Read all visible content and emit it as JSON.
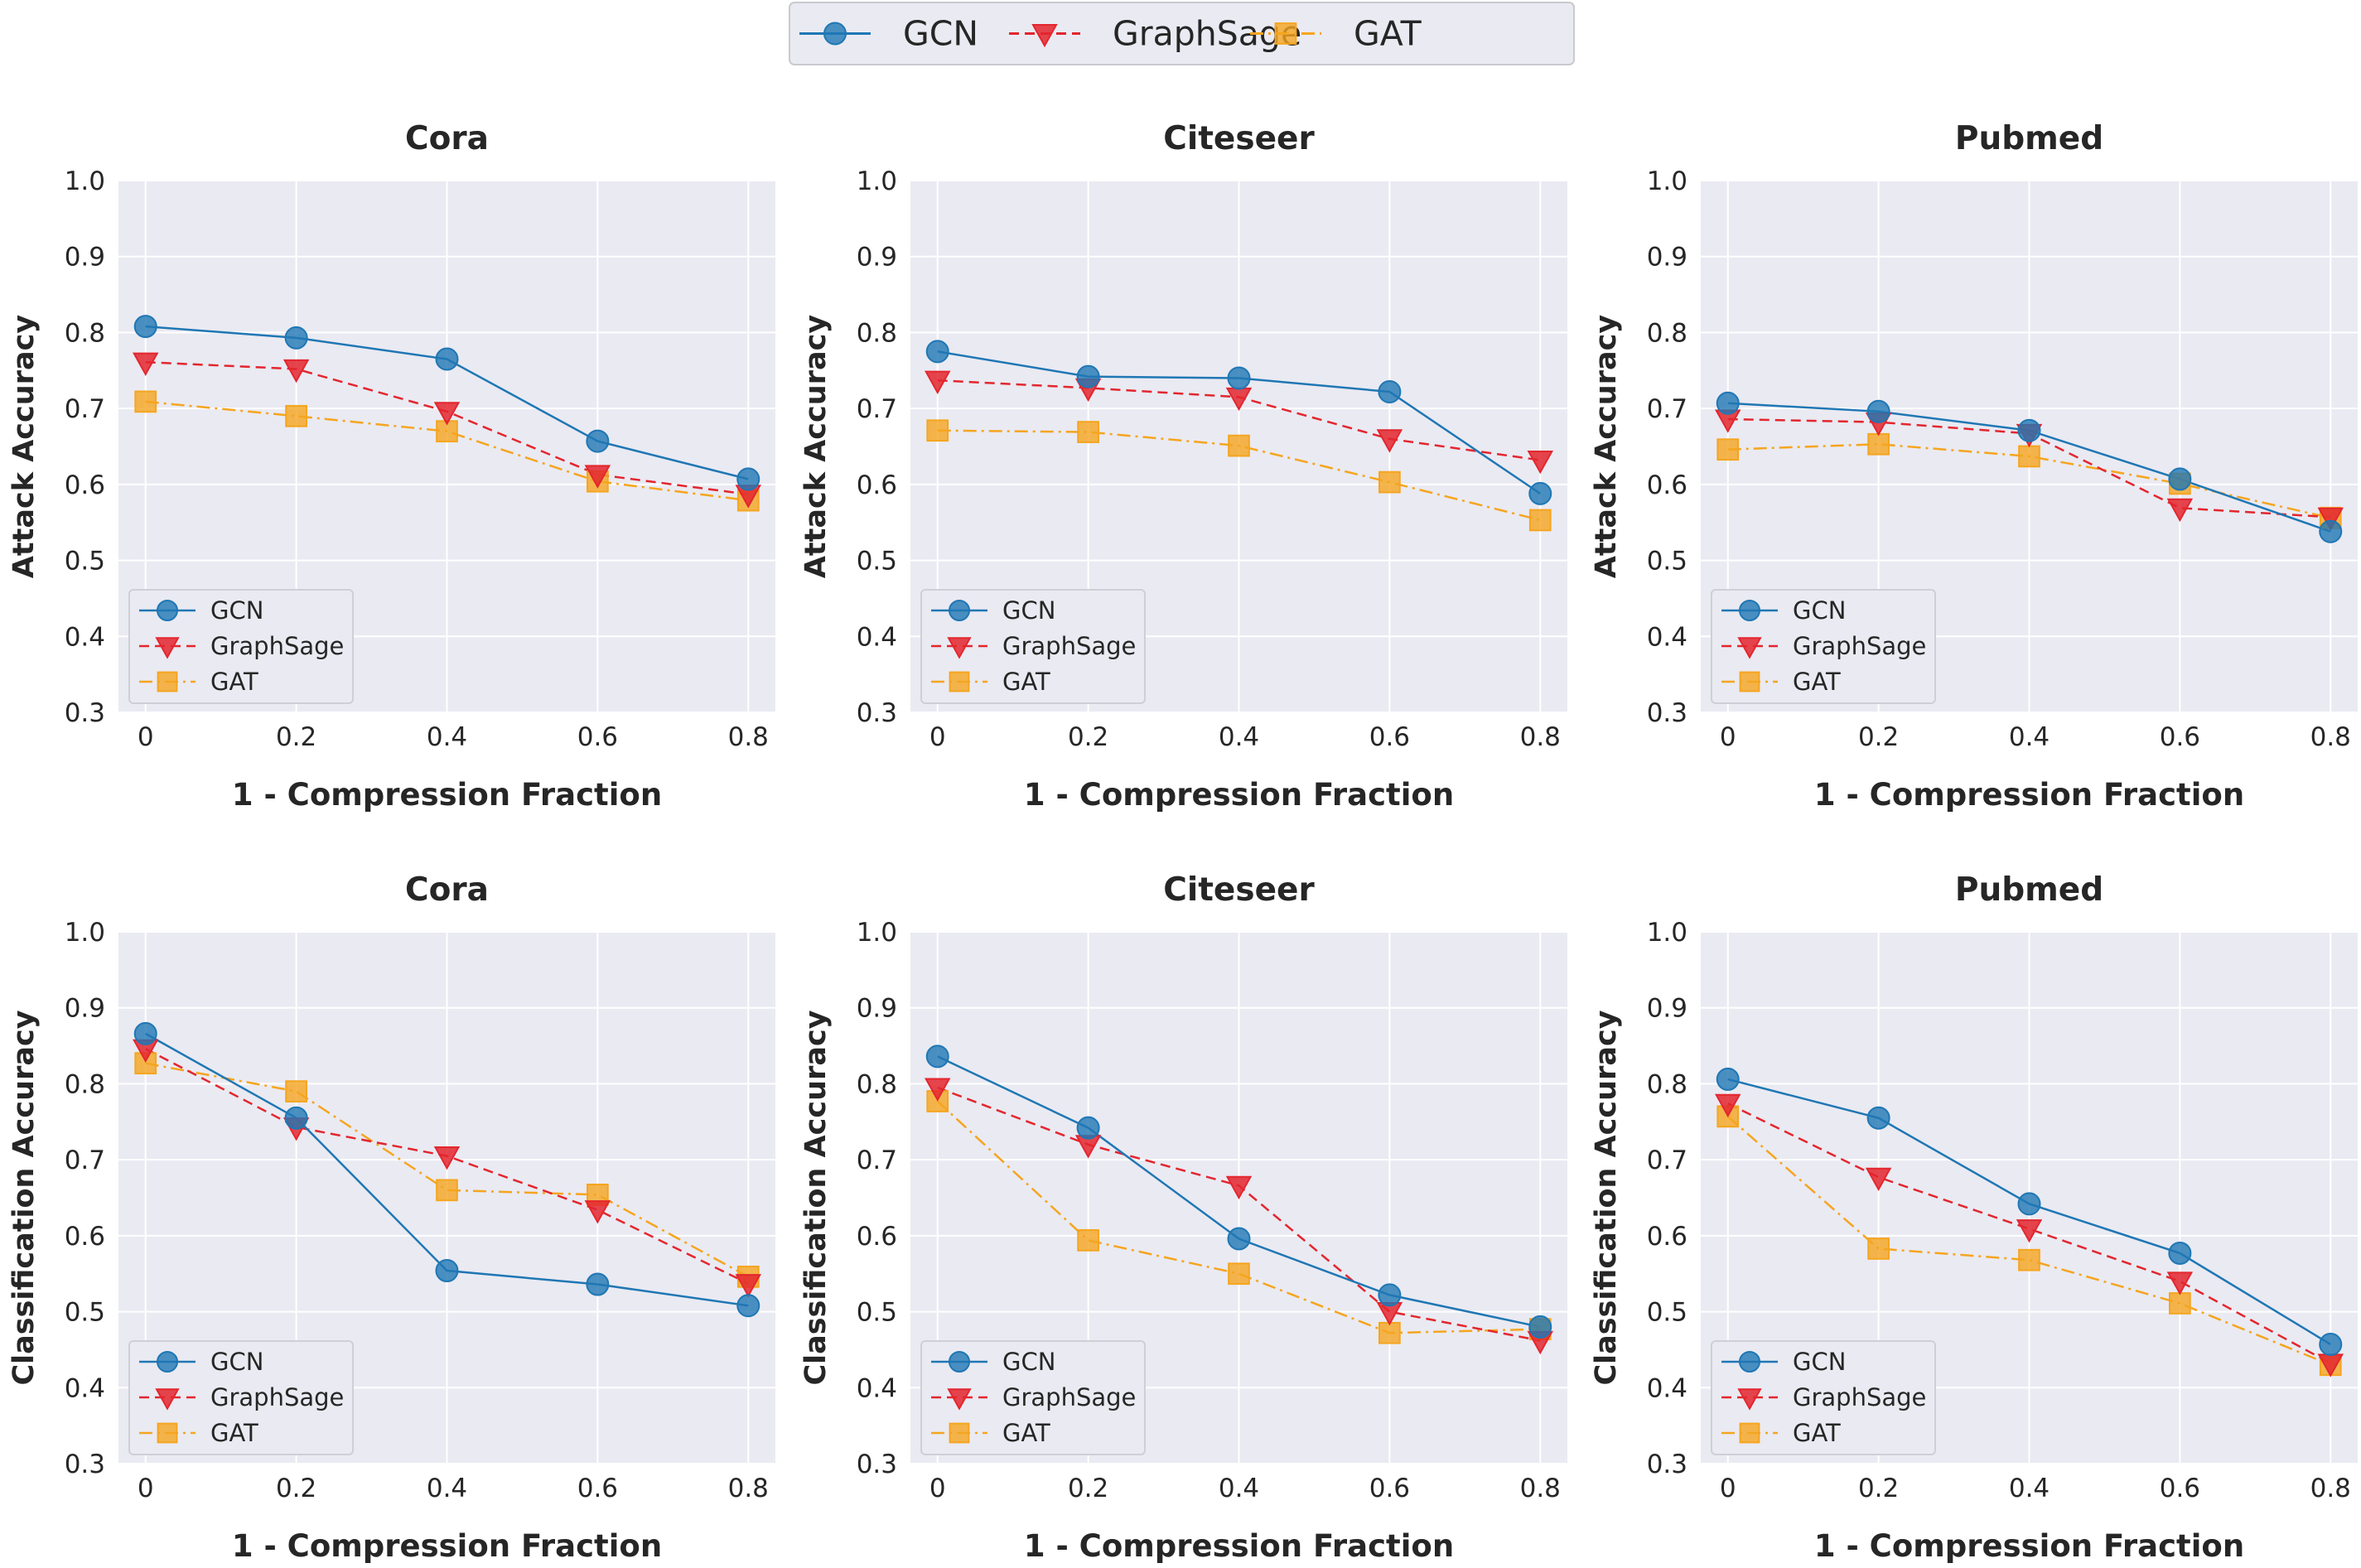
{
  "legend_top": {
    "items": [
      {
        "name": "GCN"
      },
      {
        "name": "GraphSage"
      },
      {
        "name": "GAT"
      }
    ]
  },
  "series_styles": [
    {
      "name": "GCN",
      "color": "#1f77b4",
      "marker": "circle",
      "dash": "solid"
    },
    {
      "name": "GraphSage",
      "color": "#e3262e",
      "marker": "triangle-down",
      "dash": "dashed"
    },
    {
      "name": "GAT",
      "color": "#f5a51f",
      "marker": "square",
      "dash": "dashdot"
    }
  ],
  "chart_data": [
    {
      "type": "line",
      "title": "Cora",
      "xlabel": "1 - Compression Fraction",
      "ylabel": "Attack Accuracy",
      "x": [
        0,
        0.2,
        0.4,
        0.6,
        0.8
      ],
      "x_tick_labels": [
        "0",
        "0.2",
        "0.4",
        "0.6",
        "0.8"
      ],
      "ylim": [
        0.3,
        1.0
      ],
      "y_ticks": [
        "0.3",
        "0.4",
        "0.5",
        "0.6",
        "0.7",
        "0.8",
        "0.9",
        "1.0"
      ],
      "grid": true,
      "legend_position": "lower-left",
      "series": [
        {
          "name": "GCN",
          "values": [
            0.808,
            0.793,
            0.765,
            0.657,
            0.607
          ]
        },
        {
          "name": "GraphSage",
          "values": [
            0.761,
            0.752,
            0.696,
            0.613,
            0.587
          ]
        },
        {
          "name": "GAT",
          "values": [
            0.709,
            0.69,
            0.67,
            0.604,
            0.579
          ]
        }
      ]
    },
    {
      "type": "line",
      "title": "Citeseer",
      "xlabel": "1 - Compression Fraction",
      "ylabel": "Attack Accuracy",
      "x": [
        0,
        0.2,
        0.4,
        0.6,
        0.8
      ],
      "x_tick_labels": [
        "0",
        "0.2",
        "0.4",
        "0.6",
        "0.8"
      ],
      "ylim": [
        0.3,
        1.0
      ],
      "y_ticks": [
        "0.3",
        "0.4",
        "0.5",
        "0.6",
        "0.7",
        "0.8",
        "0.9",
        "1.0"
      ],
      "grid": true,
      "legend_position": "lower-left",
      "series": [
        {
          "name": "GCN",
          "values": [
            0.775,
            0.742,
            0.74,
            0.722,
            0.588
          ]
        },
        {
          "name": "GraphSage",
          "values": [
            0.737,
            0.727,
            0.715,
            0.66,
            0.632
          ]
        },
        {
          "name": "GAT",
          "values": [
            0.671,
            0.669,
            0.651,
            0.603,
            0.553
          ]
        }
      ]
    },
    {
      "type": "line",
      "title": "Pubmed",
      "xlabel": "1 - Compression Fraction",
      "ylabel": "Attack Accuracy",
      "x": [
        0,
        0.2,
        0.4,
        0.6,
        0.8
      ],
      "x_tick_labels": [
        "0",
        "0.2",
        "0.4",
        "0.6",
        "0.8"
      ],
      "ylim": [
        0.3,
        1.0
      ],
      "y_ticks": [
        "0.3",
        "0.4",
        "0.5",
        "0.6",
        "0.7",
        "0.8",
        "0.9",
        "1.0"
      ],
      "grid": true,
      "legend_position": "lower-left",
      "series": [
        {
          "name": "GCN",
          "values": [
            0.707,
            0.696,
            0.671,
            0.607,
            0.538
          ]
        },
        {
          "name": "GraphSage",
          "values": [
            0.686,
            0.682,
            0.667,
            0.569,
            0.557
          ]
        },
        {
          "name": "GAT",
          "values": [
            0.646,
            0.653,
            0.637,
            0.601,
            0.556
          ]
        }
      ]
    },
    {
      "type": "line",
      "title": "Cora",
      "xlabel": "1 - Compression Fraction",
      "ylabel": "Classification Accuracy",
      "x": [
        0,
        0.2,
        0.4,
        0.6,
        0.8
      ],
      "x_tick_labels": [
        "0",
        "0.2",
        "0.4",
        "0.6",
        "0.8"
      ],
      "ylim": [
        0.3,
        1.0
      ],
      "y_ticks": [
        "0.3",
        "0.4",
        "0.5",
        "0.6",
        "0.7",
        "0.8",
        "0.9",
        "1.0"
      ],
      "grid": true,
      "legend_position": "lower-left",
      "series": [
        {
          "name": "GCN",
          "values": [
            0.866,
            0.755,
            0.554,
            0.536,
            0.508
          ]
        },
        {
          "name": "GraphSage",
          "values": [
            0.846,
            0.743,
            0.705,
            0.634,
            0.537
          ]
        },
        {
          "name": "GAT",
          "values": [
            0.827,
            0.79,
            0.66,
            0.654,
            0.546
          ]
        }
      ]
    },
    {
      "type": "line",
      "title": "Citeseer",
      "xlabel": "1 - Compression Fraction",
      "ylabel": "Classification Accuracy",
      "x": [
        0,
        0.2,
        0.4,
        0.6,
        0.8
      ],
      "x_tick_labels": [
        "0",
        "0.2",
        "0.4",
        "0.6",
        "0.8"
      ],
      "ylim": [
        0.3,
        1.0
      ],
      "y_ticks": [
        "0.3",
        "0.4",
        "0.5",
        "0.6",
        "0.7",
        "0.8",
        "0.9",
        "1.0"
      ],
      "grid": true,
      "legend_position": "lower-left",
      "series": [
        {
          "name": "GCN",
          "values": [
            0.836,
            0.742,
            0.596,
            0.522,
            0.48
          ]
        },
        {
          "name": "GraphSage",
          "values": [
            0.795,
            0.72,
            0.666,
            0.5,
            0.462
          ]
        },
        {
          "name": "GAT",
          "values": [
            0.777,
            0.594,
            0.55,
            0.472,
            0.477
          ]
        }
      ]
    },
    {
      "type": "line",
      "title": "Pubmed",
      "xlabel": "1 - Compression Fraction",
      "ylabel": "Classification Accuracy",
      "x": [
        0,
        0.2,
        0.4,
        0.6,
        0.8
      ],
      "x_tick_labels": [
        "0",
        "0.2",
        "0.4",
        "0.6",
        "0.8"
      ],
      "ylim": [
        0.3,
        1.0
      ],
      "y_ticks": [
        "0.3",
        "0.4",
        "0.5",
        "0.6",
        "0.7",
        "0.8",
        "0.9",
        "1.0"
      ],
      "grid": true,
      "legend_position": "lower-left",
      "series": [
        {
          "name": "GCN",
          "values": [
            0.806,
            0.755,
            0.642,
            0.577,
            0.457
          ]
        },
        {
          "name": "GraphSage",
          "values": [
            0.774,
            0.677,
            0.609,
            0.54,
            0.432
          ]
        },
        {
          "name": "GAT",
          "values": [
            0.757,
            0.583,
            0.568,
            0.511,
            0.43
          ]
        }
      ]
    }
  ]
}
